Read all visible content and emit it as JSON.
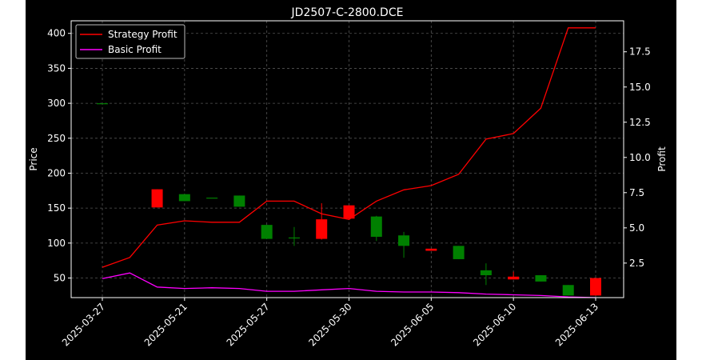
{
  "chart_data": {
    "type": "candlestick",
    "title": "JD2507-C-2800.DCE",
    "ylabel_left": "Price",
    "ylabel_right": "Profit",
    "ylim_left": [
      22,
      418
    ],
    "ylim_right": [
      0.05,
      19.7
    ],
    "grid": true,
    "legend_position": "upper-left",
    "x_ticks": [
      "2025-03-27",
      "2025-05-21",
      "2025-05-27",
      "2025-05-30",
      "2025-06-05",
      "2025-06-10",
      "2025-06-13"
    ],
    "x_tick_index": [
      0,
      3,
      6,
      9,
      12,
      15,
      18
    ],
    "yticks_left": [
      50,
      100,
      150,
      200,
      250,
      300,
      350,
      400
    ],
    "yticks_right": [
      2.5,
      5.0,
      7.5,
      10.0,
      12.5,
      15.0,
      17.5
    ],
    "candles": [
      {
        "i": 0,
        "open": 300,
        "high": 300,
        "low": 300,
        "close": 300
      },
      {
        "i": 2,
        "open": 177,
        "high": 177,
        "low": 151,
        "close": 151
      },
      {
        "i": 3,
        "open": 160,
        "high": 170,
        "low": 160,
        "close": 170
      },
      {
        "i": 4,
        "open": 165,
        "high": 165,
        "low": 165,
        "close": 165
      },
      {
        "i": 5,
        "open": 152,
        "high": 168,
        "low": 152,
        "close": 168
      },
      {
        "i": 6,
        "open": 106,
        "high": 126,
        "low": 106,
        "close": 126
      },
      {
        "i": 7,
        "open": 108,
        "high": 123,
        "low": 96,
        "close": 108
      },
      {
        "i": 8,
        "open": 134,
        "high": 157,
        "low": 105,
        "close": 106
      },
      {
        "i": 9,
        "open": 154,
        "high": 154,
        "low": 135,
        "close": 135
      },
      {
        "i": 10,
        "open": 109,
        "high": 139,
        "low": 103,
        "close": 138
      },
      {
        "i": 11,
        "open": 96,
        "high": 116,
        "low": 79,
        "close": 111
      },
      {
        "i": 12,
        "open": 92,
        "high": 92,
        "low": 89,
        "close": 89
      },
      {
        "i": 13,
        "open": 77,
        "high": 96,
        "low": 77,
        "close": 96
      },
      {
        "i": 14,
        "open": 54,
        "high": 71,
        "low": 40,
        "close": 61
      },
      {
        "i": 15,
        "open": 52,
        "high": 59,
        "low": 48,
        "close": 48
      },
      {
        "i": 16,
        "open": 45,
        "high": 54,
        "low": 45,
        "close": 54
      },
      {
        "i": 17,
        "open": 25,
        "high": 40,
        "low": 25,
        "close": 40
      },
      {
        "i": 18,
        "open": 50,
        "high": 50,
        "low": 25,
        "close": 25
      }
    ],
    "colors": {
      "up": "#008000",
      "down": "#ff0000",
      "background": "#000000",
      "foreground": "#ffffff",
      "grid": "#555555"
    },
    "series": [
      {
        "name": "Strategy Profit",
        "color": "#ff0000",
        "x": [
          0,
          1,
          2,
          3,
          4,
          5,
          6,
          7,
          8,
          9,
          10,
          11,
          12,
          13,
          14,
          15,
          16,
          17,
          18
        ],
        "values": [
          2.2,
          2.9,
          5.2,
          5.5,
          5.4,
          5.4,
          6.9,
          6.9,
          6.0,
          5.6,
          6.9,
          7.7,
          8.0,
          8.8,
          11.3,
          11.7,
          13.5,
          19.2,
          19.2
        ]
      },
      {
        "name": "Basic Profit",
        "color": "#ff00ff",
        "x": [
          0,
          1,
          2,
          3,
          4,
          5,
          6,
          7,
          8,
          9,
          10,
          11,
          12,
          13,
          14,
          15,
          16,
          17,
          18
        ],
        "values": [
          1.4,
          1.8,
          0.8,
          0.7,
          0.75,
          0.7,
          0.5,
          0.5,
          0.6,
          0.7,
          0.5,
          0.45,
          0.45,
          0.4,
          0.3,
          0.25,
          0.2,
          0.1,
          0.05
        ]
      }
    ]
  }
}
